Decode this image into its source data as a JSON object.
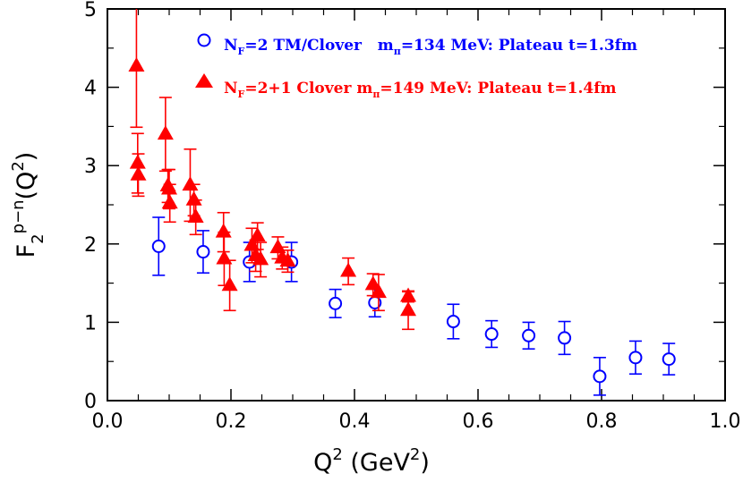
{
  "chart_data": {
    "type": "scatter",
    "xlabel": {
      "main": "Q",
      "sup1": "2",
      "unit_open": " (GeV",
      "sup2": "2",
      "unit_close": ")"
    },
    "ylabel": {
      "main": "F",
      "sub": "2",
      "sup": "p−n",
      "arg": "(Q",
      "argsup": "2",
      "argclose": ")"
    },
    "xlim": [
      0.0,
      1.0
    ],
    "ylim": [
      0,
      5
    ],
    "x_ticks": [
      "0.0",
      "0.2",
      "0.4",
      "0.6",
      "0.8",
      "1.0"
    ],
    "y_ticks": [
      "0",
      "1",
      "2",
      "3",
      "4",
      "5"
    ],
    "legend_placement": "top",
    "series": [
      {
        "legend": {
          "pre": "N",
          "sub": "F",
          "mid": "=2 TM/Clover   m",
          "sub2": "π",
          "post": "=134 MeV: Plateau  t=1.3fm"
        },
        "marker": "circle-open",
        "color": "#0000ff",
        "points": [
          {
            "x": 0.083,
            "y": 1.97,
            "err": 0.37
          },
          {
            "x": 0.155,
            "y": 1.9,
            "err": 0.27
          },
          {
            "x": 0.23,
            "y": 1.77,
            "err": 0.25
          },
          {
            "x": 0.298,
            "y": 1.77,
            "err": 0.25
          },
          {
            "x": 0.369,
            "y": 1.24,
            "err": 0.18
          },
          {
            "x": 0.433,
            "y": 1.25,
            "err": 0.18
          },
          {
            "x": 0.56,
            "y": 1.01,
            "err": 0.22
          },
          {
            "x": 0.622,
            "y": 0.85,
            "err": 0.17
          },
          {
            "x": 0.682,
            "y": 0.83,
            "err": 0.17
          },
          {
            "x": 0.74,
            "y": 0.8,
            "err": 0.21
          },
          {
            "x": 0.797,
            "y": 0.31,
            "err": 0.24
          },
          {
            "x": 0.855,
            "y": 0.55,
            "err": 0.21
          },
          {
            "x": 0.909,
            "y": 0.53,
            "err": 0.2
          }
        ]
      },
      {
        "legend": {
          "pre": "N",
          "sub": "F",
          "mid": "=2+1 Clover  m",
          "sub2": "π",
          "post": "=149 MeV: Plateau  t=1.4fm"
        },
        "marker": "triangle-filled",
        "color": "#ff0000",
        "points": [
          {
            "x": 0.047,
            "y": 4.27,
            "err": 0.78
          },
          {
            "x": 0.049,
            "y": 3.03,
            "err": 0.38
          },
          {
            "x": 0.05,
            "y": 2.88,
            "err": 0.27
          },
          {
            "x": 0.094,
            "y": 3.4,
            "err": 0.47
          },
          {
            "x": 0.098,
            "y": 2.74,
            "err": 0.21
          },
          {
            "x": 0.1,
            "y": 2.7,
            "err": 0.25
          },
          {
            "x": 0.101,
            "y": 2.52,
            "err": 0.24
          },
          {
            "x": 0.134,
            "y": 2.75,
            "err": 0.46
          },
          {
            "x": 0.14,
            "y": 2.56,
            "err": 0.2
          },
          {
            "x": 0.143,
            "y": 2.34,
            "err": 0.22
          },
          {
            "x": 0.188,
            "y": 2.15,
            "err": 0.25
          },
          {
            "x": 0.189,
            "y": 1.81,
            "err": 0.34
          },
          {
            "x": 0.198,
            "y": 1.47,
            "err": 0.32
          },
          {
            "x": 0.234,
            "y": 1.98,
            "err": 0.22
          },
          {
            "x": 0.24,
            "y": 1.85,
            "err": 0.2
          },
          {
            "x": 0.243,
            "y": 2.1,
            "err": 0.17
          },
          {
            "x": 0.248,
            "y": 1.8,
            "err": 0.22
          },
          {
            "x": 0.276,
            "y": 1.95,
            "err": 0.14
          },
          {
            "x": 0.283,
            "y": 1.82,
            "err": 0.14
          },
          {
            "x": 0.292,
            "y": 1.78,
            "err": 0.14
          },
          {
            "x": 0.39,
            "y": 1.65,
            "err": 0.17
          },
          {
            "x": 0.43,
            "y": 1.48,
            "err": 0.14
          },
          {
            "x": 0.439,
            "y": 1.38,
            "err": 0.23
          },
          {
            "x": 0.487,
            "y": 1.33,
            "err": 0.07
          },
          {
            "x": 0.487,
            "y": 1.15,
            "err": 0.24
          }
        ]
      }
    ]
  }
}
